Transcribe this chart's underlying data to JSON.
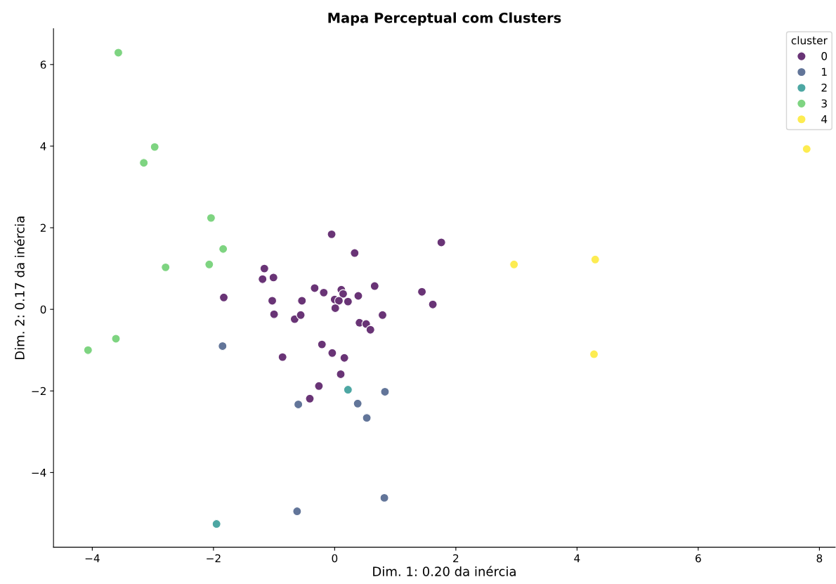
{
  "chart_data": {
    "type": "scatter",
    "title": "Mapa Perceptual com Clusters",
    "xlabel": "Dim. 1: 0.20 da inércia",
    "ylabel": "Dim. 2: 0.17 da inércia",
    "legend_title": "cluster",
    "legend": "top right",
    "marker": "circle",
    "grid": false,
    "xlim": [
      -4.64,
      8.26
    ],
    "ylim": [
      -5.83,
      6.88
    ],
    "xticks": [
      -4,
      -2,
      0,
      2,
      4,
      6,
      8
    ],
    "yticks": [
      -4,
      -2,
      0,
      2,
      4,
      6
    ],
    "series": [
      {
        "name": "0",
        "color": "#693476",
        "x": [
          -0.05,
          0.33,
          1.76,
          -1.16,
          -1.01,
          -1.19,
          -1.03,
          -1.0,
          -0.54,
          -0.66,
          -0.56,
          -0.33,
          -0.18,
          0.11,
          0.14,
          0.0,
          0.07,
          0.22,
          0.01,
          0.39,
          0.66,
          1.44,
          1.62,
          0.79,
          0.41,
          0.52,
          0.59,
          -0.21,
          -0.04,
          0.16,
          -0.86,
          0.1,
          -0.26,
          -0.41,
          -1.83
        ],
        "values": [
          1.84,
          1.38,
          1.64,
          1.0,
          0.78,
          0.74,
          0.21,
          -0.12,
          0.21,
          -0.24,
          -0.14,
          0.52,
          0.41,
          0.48,
          0.38,
          0.24,
          0.21,
          0.19,
          0.03,
          0.33,
          0.57,
          0.43,
          0.12,
          -0.14,
          -0.33,
          -0.36,
          -0.5,
          -0.86,
          -1.07,
          -1.19,
          -1.17,
          -1.59,
          -1.88,
          -2.19,
          0.29
        ]
      },
      {
        "name": "1",
        "color": "#627599",
        "x": [
          -1.85,
          0.83,
          0.38,
          -0.6,
          0.53,
          -0.62,
          0.82
        ],
        "values": [
          -0.9,
          -2.02,
          -2.31,
          -2.33,
          -2.66,
          -4.95,
          -4.62
        ]
      },
      {
        "name": "2",
        "color": "#4da7a3",
        "x": [
          0.22,
          -1.95
        ],
        "values": [
          -1.97,
          -5.26
        ]
      },
      {
        "name": "3",
        "color": "#7ed481",
        "x": [
          -3.57,
          -2.97,
          -3.15,
          -2.04,
          -1.84,
          -2.07,
          -2.79,
          -3.61,
          -4.07
        ],
        "values": [
          6.29,
          3.98,
          3.59,
          2.24,
          1.48,
          1.1,
          1.03,
          -0.72,
          -1.0
        ]
      },
      {
        "name": "4",
        "color": "#fdec51",
        "x": [
          2.96,
          4.3,
          4.28,
          7.79
        ],
        "values": [
          1.1,
          1.22,
          -1.1,
          3.93
        ]
      }
    ]
  }
}
